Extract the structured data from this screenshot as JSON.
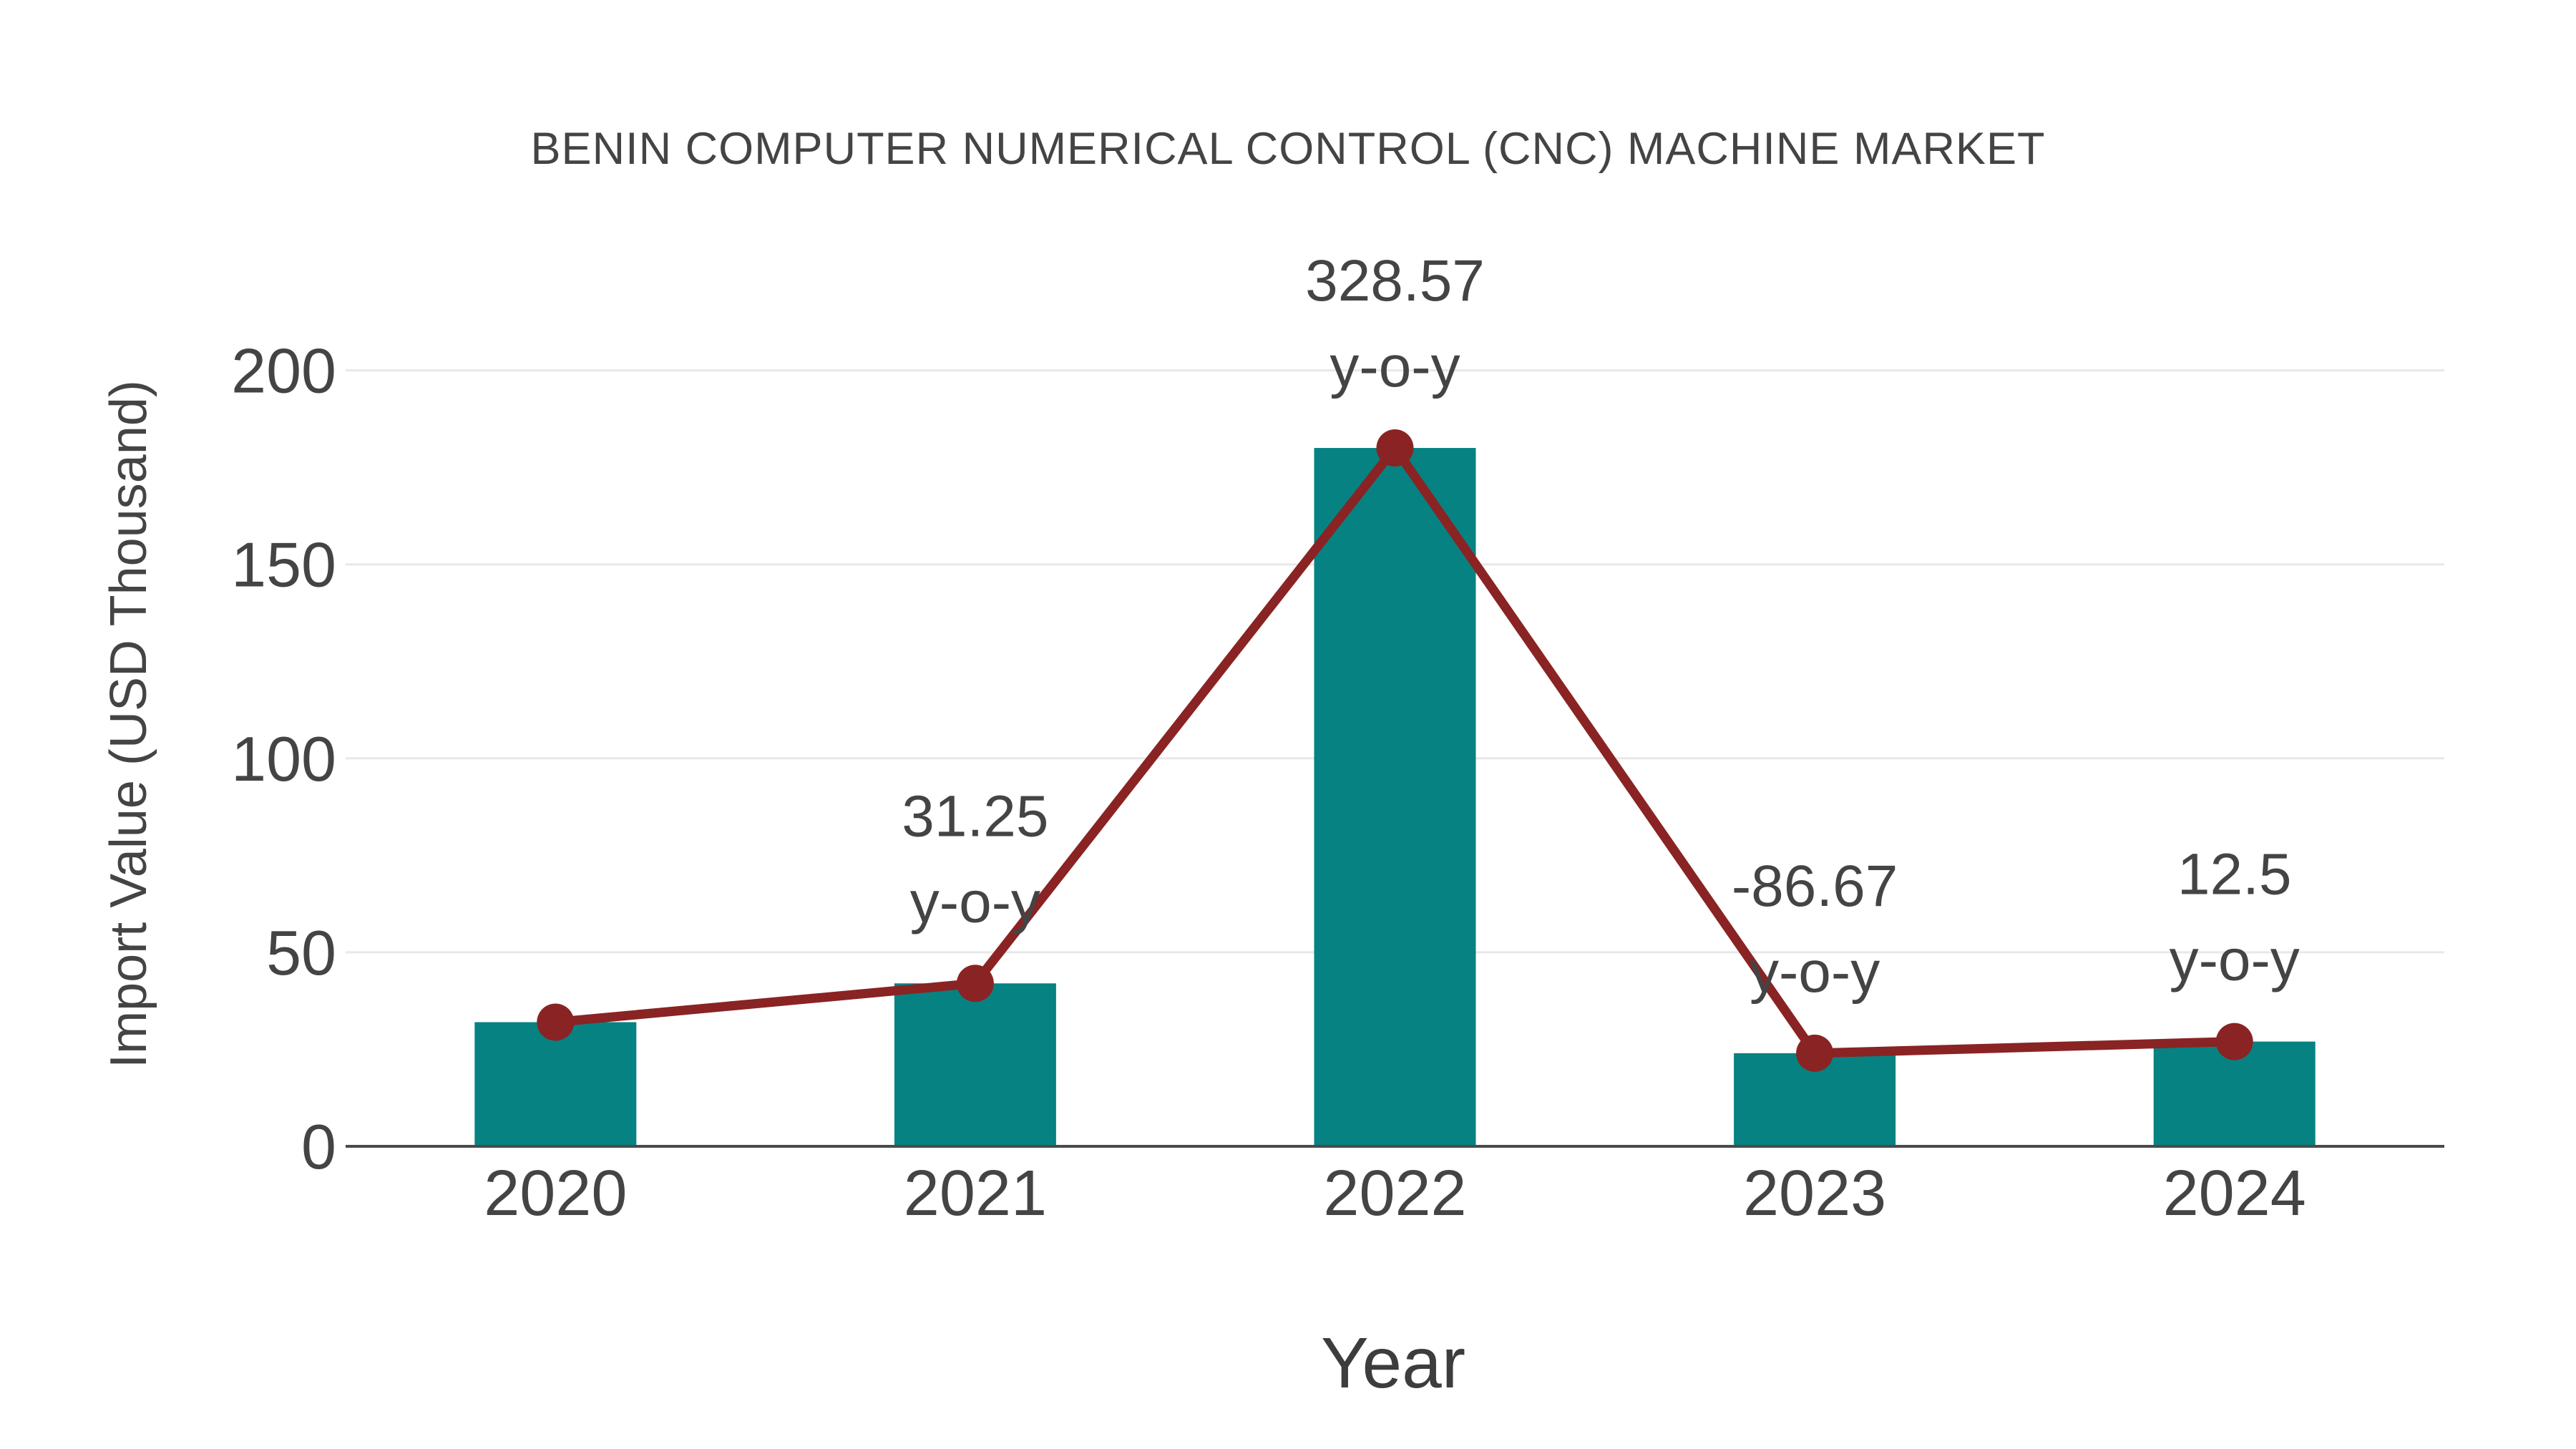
{
  "chart_data": {
    "type": "bar",
    "title": "BENIN COMPUTER NUMERICAL CONTROL (CNC) MACHINE MARKET",
    "xlabel": "Year",
    "ylabel": "Import Value (USD Thousand)",
    "categories": [
      "2020",
      "2021",
      "2022",
      "2023",
      "2024"
    ],
    "series": [
      {
        "name": "Import Value bars",
        "type": "bar",
        "values": [
          32,
          42,
          180,
          24,
          27
        ]
      },
      {
        "name": "Import Value trend",
        "type": "line",
        "values": [
          32,
          42,
          180,
          24,
          27
        ]
      }
    ],
    "annotations": [
      {
        "category": "2021",
        "line1": "31.25",
        "line2": "y-o-y"
      },
      {
        "category": "2022",
        "line1": "328.57",
        "line2": "y-o-y"
      },
      {
        "category": "2023",
        "line1": "-86.67",
        "line2": "y-o-y"
      },
      {
        "category": "2024",
        "line1": "12.5",
        "line2": "y-o-y"
      }
    ],
    "yticks": [
      0,
      50,
      100,
      150,
      200
    ],
    "ylim": [
      0,
      218
    ],
    "grid": true,
    "legend": "none",
    "colors": {
      "bar": "#078282",
      "line": "#8A2323",
      "marker": "#8A2323",
      "gridline": "#e8e8e8",
      "axis_line": "#4a4a4a",
      "text": "#444444"
    }
  }
}
